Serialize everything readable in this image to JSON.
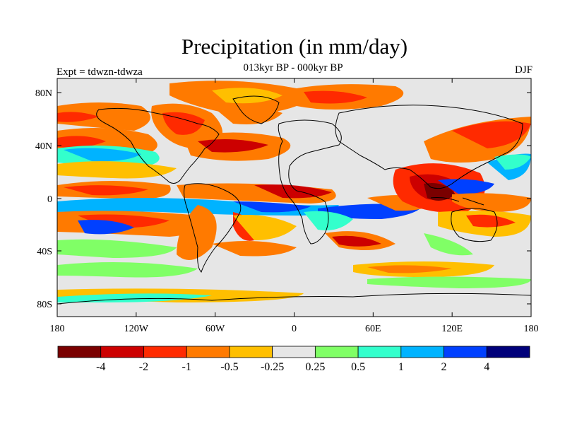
{
  "title": "Precipitation (in mm/day)",
  "subtitle": "013kyr BP - 000kyr BP",
  "left_string": "Expt = tdwzn-tdwza",
  "right_string": "DJF",
  "axes": {
    "lat_labels": [
      "80N",
      "40N",
      "0",
      "40S",
      "80S"
    ],
    "lon_labels": [
      "180",
      "120W",
      "60W",
      "0",
      "60E",
      "120E",
      "180"
    ]
  },
  "colorbar": {
    "colors": [
      "#7a0000",
      "#cc0000",
      "#ff2a00",
      "#ff7a00",
      "#ffbf00",
      "#e6e6e6",
      "#80ff66",
      "#33ffcc",
      "#00b3ff",
      "#0040ff",
      "#00007a"
    ],
    "labels": [
      "-4",
      "-2",
      "-1",
      "-0.5",
      "-0.25",
      "0.25",
      "0.5",
      "1",
      "2",
      "4"
    ]
  }
}
